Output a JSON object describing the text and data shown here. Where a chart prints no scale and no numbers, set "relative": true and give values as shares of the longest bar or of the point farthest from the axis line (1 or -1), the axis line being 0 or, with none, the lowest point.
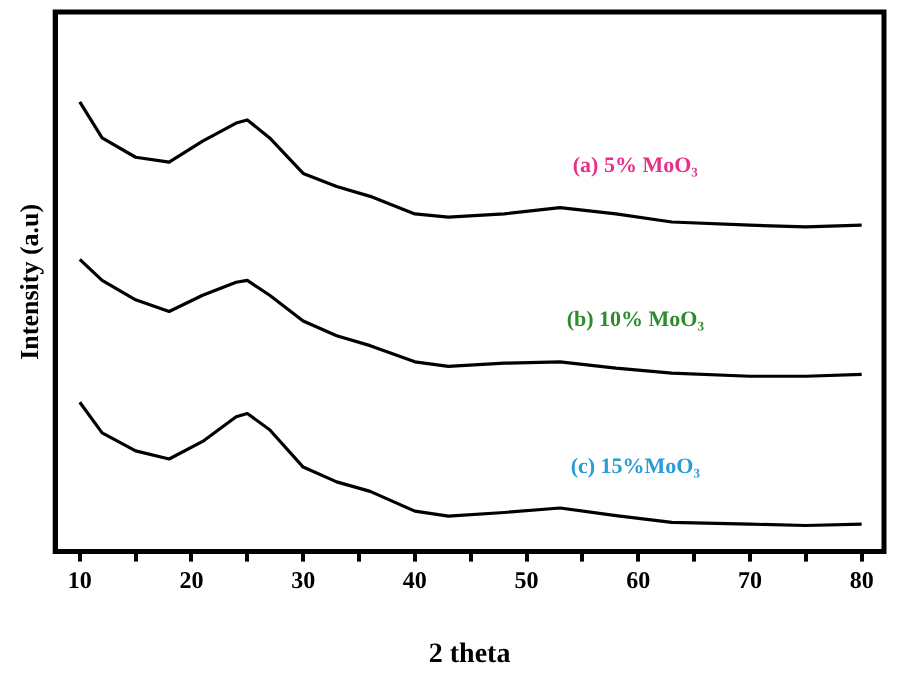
{
  "chart_data": {
    "type": "line",
    "xlabel": "2 theta",
    "ylabel": "Intensity (a.u)",
    "relative": true,
    "marker": "none",
    "line_style": "solid",
    "grid": false,
    "legend": false,
    "xlim": [
      7.8,
      82
    ],
    "xticks": [
      10,
      {
        "value": 15,
        "label": null
      },
      20,
      {
        "value": 25,
        "label": null
      },
      30,
      {
        "value": 35,
        "label": null
      },
      40,
      {
        "value": 45,
        "label": null
      },
      50,
      {
        "value": 55,
        "label": null
      },
      60,
      {
        "value": 65,
        "label": null
      },
      70,
      {
        "value": 75,
        "label": null
      },
      80
    ],
    "x": [
      10,
      12,
      15,
      18,
      21,
      24,
      25,
      27,
      30,
      33,
      36,
      40,
      43,
      48,
      53,
      58,
      63,
      70,
      75,
      80
    ],
    "series": [
      {
        "name": "(a) 5% MoO₃",
        "color": "#000000",
        "values": [
          1.0,
          0.92,
          0.877,
          0.866,
          0.913,
          0.953,
          0.96,
          0.92,
          0.841,
          0.812,
          0.79,
          0.751,
          0.744,
          0.751,
          0.765,
          0.751,
          0.733,
          0.726,
          0.722,
          0.726
        ]
      },
      {
        "name": "(b) 10% MoO₃",
        "color": "#000000",
        "values": [
          0.65,
          0.603,
          0.56,
          0.534,
          0.57,
          0.599,
          0.603,
          0.57,
          0.513,
          0.48,
          0.458,
          0.422,
          0.412,
          0.419,
          0.422,
          0.408,
          0.397,
          0.39,
          0.39,
          0.394
        ]
      },
      {
        "name": "(c) 15%MoO₃",
        "color": "#000000",
        "values": [
          0.332,
          0.264,
          0.224,
          0.206,
          0.245,
          0.3,
          0.307,
          0.271,
          0.188,
          0.155,
          0.134,
          0.09,
          0.079,
          0.087,
          0.097,
          0.08,
          0.065,
          0.061,
          0.058,
          0.061
        ]
      }
    ]
  }
}
